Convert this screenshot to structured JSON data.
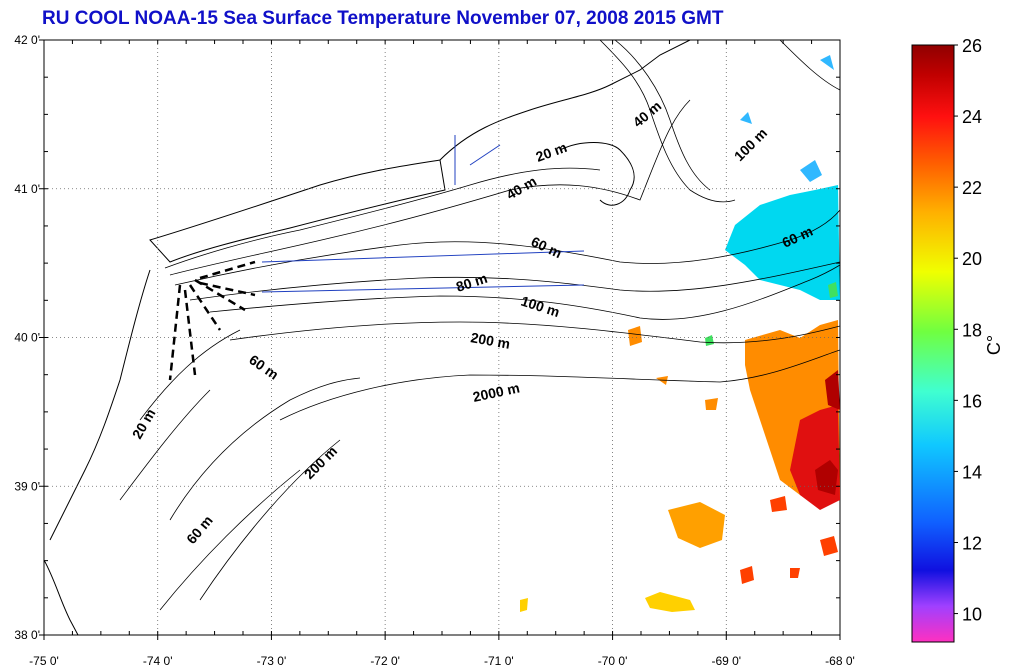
{
  "title": "RU COOL  NOAA-15 Sea Surface Temperature November 07, 2008 2015 GMT",
  "map": {
    "lon_ticks": [
      "-75 0'",
      "-74 0'",
      "-73 0'",
      "-72 0'",
      "-71 0'",
      "-70 0'",
      "-69 0'",
      "-68 0'"
    ],
    "lat_ticks": [
      "42 0'",
      "41 0'",
      "40 0'",
      "39 0'",
      "38 0'"
    ],
    "lon_range": [
      -75,
      -68
    ],
    "lat_range": [
      38,
      42
    ],
    "grid": "dotted",
    "contour_labels": [
      "20 m",
      "40 m",
      "40 m",
      "100 m",
      "60 m",
      "60 m",
      "80 m",
      "100 m",
      "200 m",
      "60 m",
      "2000 m",
      "20 m",
      "200 m",
      "60 m"
    ],
    "sst_patches": [
      {
        "color": "#00d8f0",
        "value": 15.5
      },
      {
        "color": "#30a0ff",
        "value": 14
      },
      {
        "color": "#ff8c00",
        "value": 22
      },
      {
        "color": "#ff5000",
        "value": 23
      },
      {
        "color": "#e01010",
        "value": 24.5
      },
      {
        "color": "#b00000",
        "value": 25.5
      },
      {
        "color": "#ffb000",
        "value": 21
      },
      {
        "color": "#ffd000",
        "value": 20.5
      }
    ]
  },
  "colorbar": {
    "ticks": [
      "26",
      "24",
      "22",
      "20",
      "18",
      "16",
      "14",
      "12",
      "10"
    ],
    "unit": "C°",
    "range": [
      9.2,
      26
    ],
    "stops": [
      "#ff30c0",
      "#a040ff",
      "#1010e0",
      "#1060ff",
      "#10c8ff",
      "#40ffd0",
      "#70ff40",
      "#f0ff00",
      "#ffb000",
      "#ff6000",
      "#ff1010",
      "#c00000",
      "#900000"
    ]
  }
}
